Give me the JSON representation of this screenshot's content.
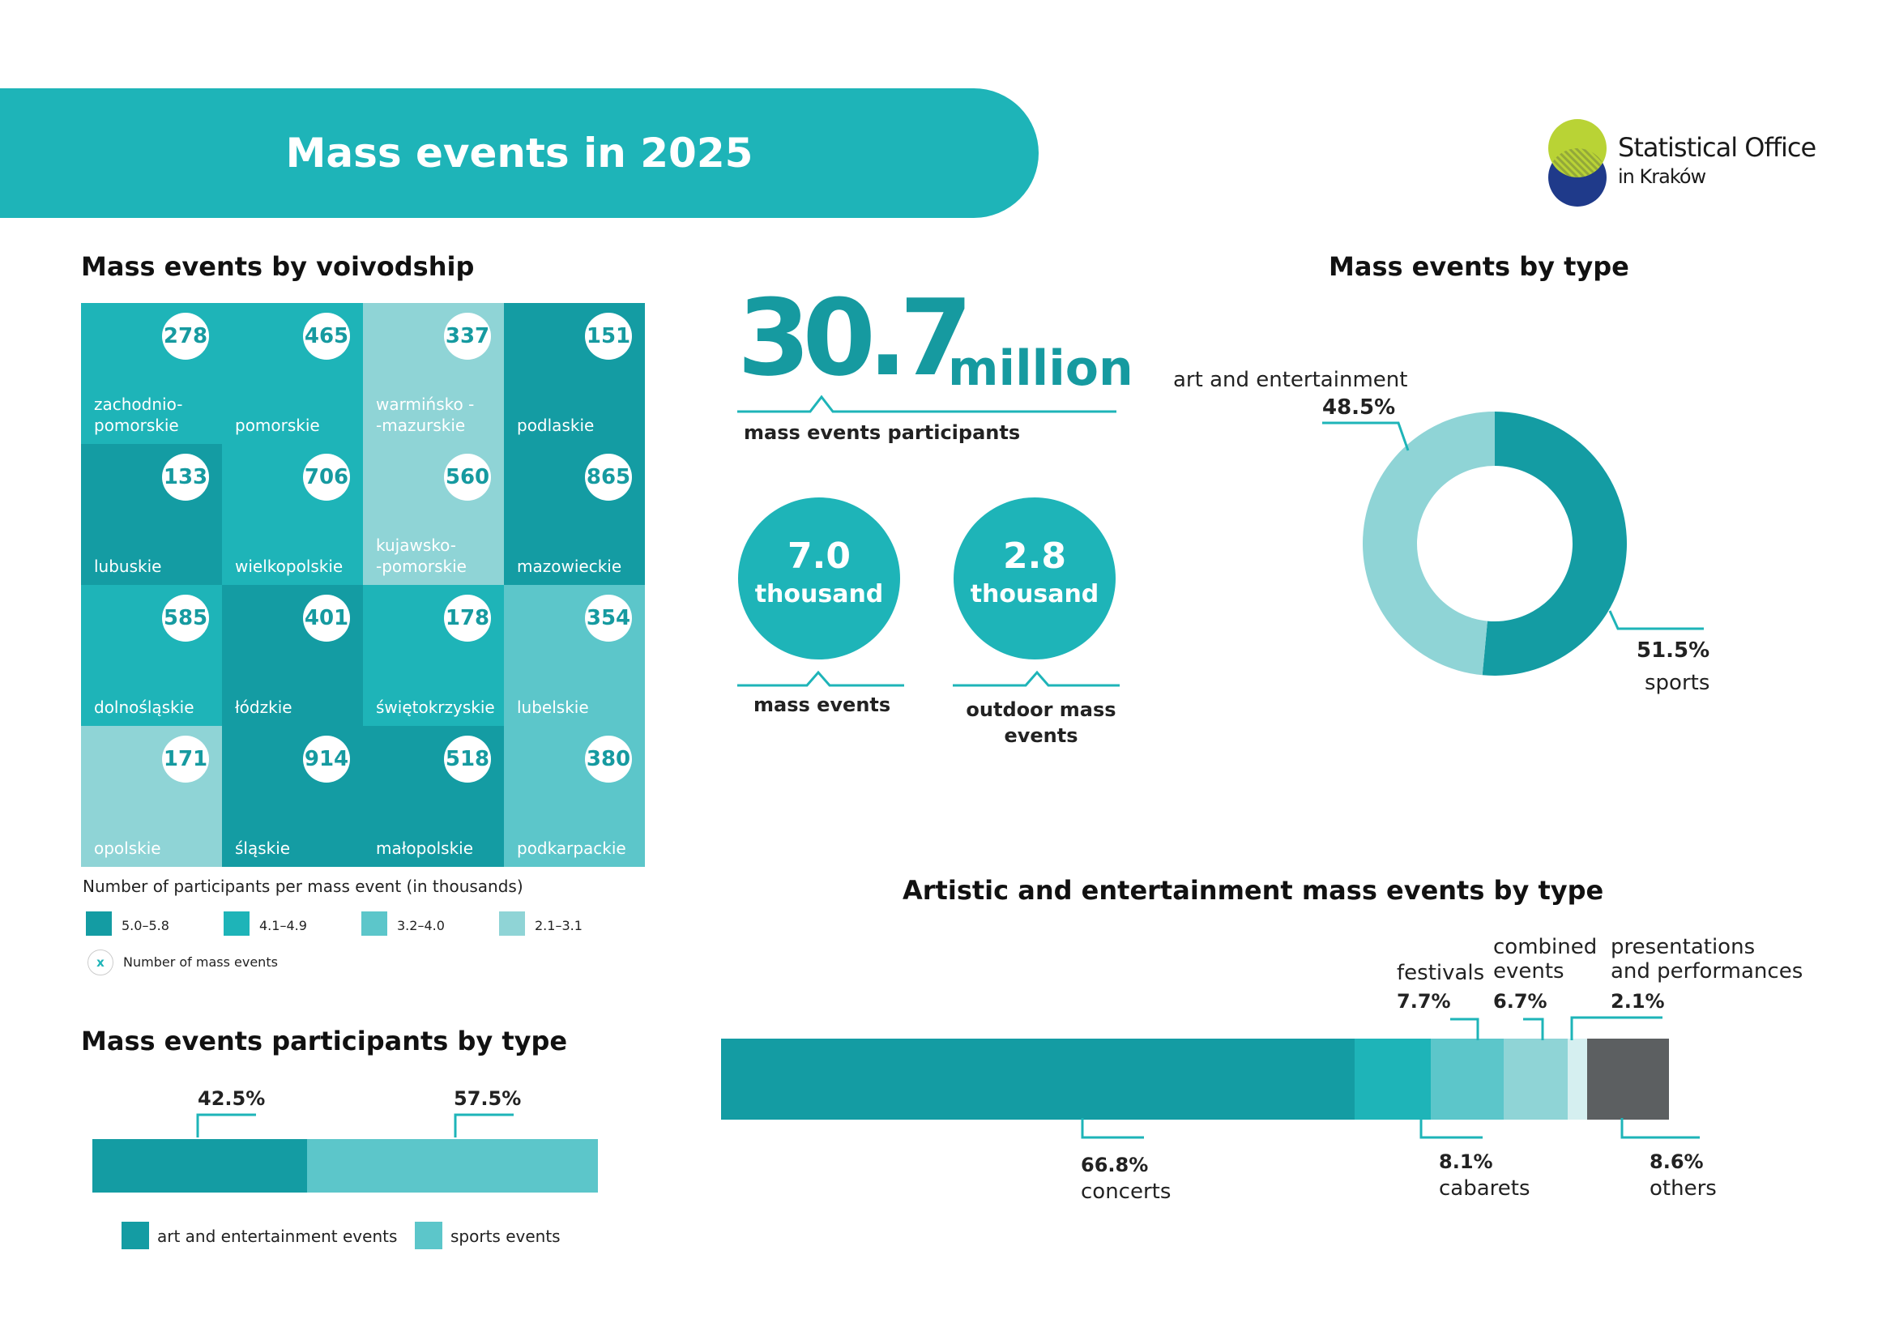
{
  "header": {
    "title": "Mass events in 2025"
  },
  "logo": {
    "line1": "Statistical Office",
    "line2": "in Kraków"
  },
  "colors": {
    "tier1": "#149ca3",
    "tier2": "#1eb4b8",
    "tier3": "#5cc6ca",
    "tier4": "#8fd4d6",
    "dark": "#5c5f61"
  },
  "voivodship": {
    "title": "Mass events by voivodship",
    "tiles": [
      {
        "name": "zachodnio-\npomorskie",
        "value": "278",
        "tier": "tier2"
      },
      {
        "name": "pomorskie",
        "value": "465",
        "tier": "tier2"
      },
      {
        "name": "warmińsko -\n-mazurskie",
        "value": "337",
        "tier": "tier4"
      },
      {
        "name": "podlaskie",
        "value": "151",
        "tier": "tier1"
      },
      {
        "name": "lubuskie",
        "value": "133",
        "tier": "tier1"
      },
      {
        "name": "wielkopolskie",
        "value": "706",
        "tier": "tier2"
      },
      {
        "name": "kujawsko-\n-pomorskie",
        "value": "560",
        "tier": "tier4"
      },
      {
        "name": "mazowieckie",
        "value": "865",
        "tier": "tier1"
      },
      {
        "name": "dolnośląskie",
        "value": "585",
        "tier": "tier2"
      },
      {
        "name": "łódzkie",
        "value": "401",
        "tier": "tier1"
      },
      {
        "name": "świętokrzyskie",
        "value": "178",
        "tier": "tier2"
      },
      {
        "name": "lubelskie",
        "value": "354",
        "tier": "tier3"
      },
      {
        "name": "opolskie",
        "value": "171",
        "tier": "tier4"
      },
      {
        "name": "śląskie",
        "value": "914",
        "tier": "tier1"
      },
      {
        "name": "małopolskie",
        "value": "518",
        "tier": "tier1"
      },
      {
        "name": "podkarpackie",
        "value": "380",
        "tier": "tier3"
      }
    ],
    "legend_title": "Number of participants per mass event (in thousands)",
    "legend": [
      {
        "label": "5.0–5.8",
        "tier": "tier1"
      },
      {
        "label": "4.1–4.9",
        "tier": "tier2"
      },
      {
        "label": "3.2–4.0",
        "tier": "tier3"
      },
      {
        "label": "2.1–3.1",
        "tier": "tier4"
      }
    ],
    "legend_marker": "x",
    "legend_marker_label": "Number of mass events"
  },
  "kpi": {
    "participants_value": "30.7",
    "participants_unit": "million",
    "participants_label": "mass events participants",
    "events_value": "7.0",
    "events_unit": "thousand",
    "events_label": "mass events",
    "outdoor_value": "2.8",
    "outdoor_unit": "thousand",
    "outdoor_label_1": "outdoor mass",
    "outdoor_label_2": "events"
  },
  "by_type": {
    "title": "Mass events by type",
    "art_label": "art and entertainment",
    "art_pct": "48.5%",
    "sports_pct": "51.5%",
    "sports_label": "sports"
  },
  "participants_by_type": {
    "title": "Mass events participants by type",
    "art_pct": "42.5%",
    "sports_pct": "57.5%",
    "art_legend": "art and entertainment events",
    "sports_legend": "sports events"
  },
  "artistic": {
    "title": "Artistic and entertainment mass events by type",
    "concerts_pct": "66.8%",
    "concerts_label": "concerts",
    "festivals_label": "festivals",
    "festivals_pct": "7.7%",
    "cabarets_pct": "8.1%",
    "cabarets_label": "cabarets",
    "combined_label_1": "combined",
    "combined_label_2": "events",
    "combined_pct": "6.7%",
    "presentations_label_1": "presentations",
    "presentations_label_2": "and performances",
    "presentations_pct": "2.1%",
    "others_pct": "8.6%",
    "others_label": "others"
  },
  "chart_data": [
    {
      "type": "pie",
      "title": "Mass events by type",
      "categories": [
        "sports",
        "art and entertainment"
      ],
      "values": [
        51.5,
        48.5
      ],
      "colors": [
        "#149ca3",
        "#8fd4d6"
      ]
    },
    {
      "type": "bar",
      "title": "Mass events participants by type",
      "categories": [
        "art and entertainment events",
        "sports events"
      ],
      "values": [
        42.5,
        57.5
      ],
      "colors": [
        "#149ca3",
        "#5cc6ca"
      ]
    },
    {
      "type": "bar",
      "title": "Artistic and entertainment mass events by type",
      "categories": [
        "concerts",
        "cabarets",
        "festivals",
        "combined events",
        "presentations and performances",
        "others"
      ],
      "values": [
        66.8,
        8.1,
        7.7,
        6.7,
        2.1,
        8.6
      ],
      "colors": [
        "#149ca3",
        "#1eb4b8",
        "#5cc6ca",
        "#8fd4d6",
        "#d5eff0",
        "#5c5f61"
      ]
    }
  ]
}
